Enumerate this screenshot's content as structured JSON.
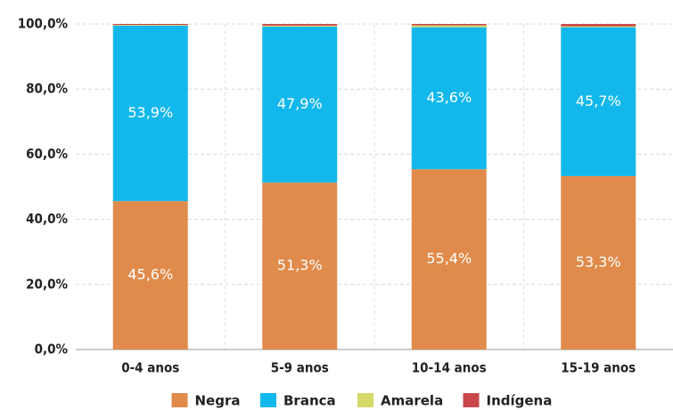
{
  "chart_data": {
    "type": "stacked_bar",
    "categories": [
      "0-4 anos",
      "5-9 anos",
      "10-14 anos",
      "15-19 anos"
    ],
    "series": [
      {
        "name": "Negra",
        "color": "#e08b4c",
        "values": [
          45.6,
          51.3,
          55.4,
          53.3
        ],
        "value_labels": [
          "45,6%",
          "51,3%",
          "55,4%",
          "53,3%"
        ]
      },
      {
        "name": "Branca",
        "color": "#12b8ec",
        "values": [
          53.9,
          47.9,
          43.6,
          45.7
        ],
        "value_labels": [
          "53,9%",
          "47,9%",
          "43,6%",
          "45,7%"
        ]
      },
      {
        "name": "Amarela",
        "color": "#d4d96a",
        "values": [
          0.2,
          0.3,
          0.6,
          0.3
        ]
      },
      {
        "name": "Indígena",
        "color": "#c9474a",
        "values": [
          0.3,
          0.5,
          0.4,
          0.7
        ]
      }
    ],
    "ylim": [
      0,
      100
    ],
    "yticks": [
      {
        "value": 0,
        "label": "0,0%"
      },
      {
        "value": 20,
        "label": "20,0%"
      },
      {
        "value": 40,
        "label": "40,0%"
      },
      {
        "value": 60,
        "label": "60,0%"
      },
      {
        "value": 80,
        "label": "80,0%"
      },
      {
        "value": 100,
        "label": "100,0%"
      }
    ],
    "grid": true,
    "legend": "bottom"
  }
}
